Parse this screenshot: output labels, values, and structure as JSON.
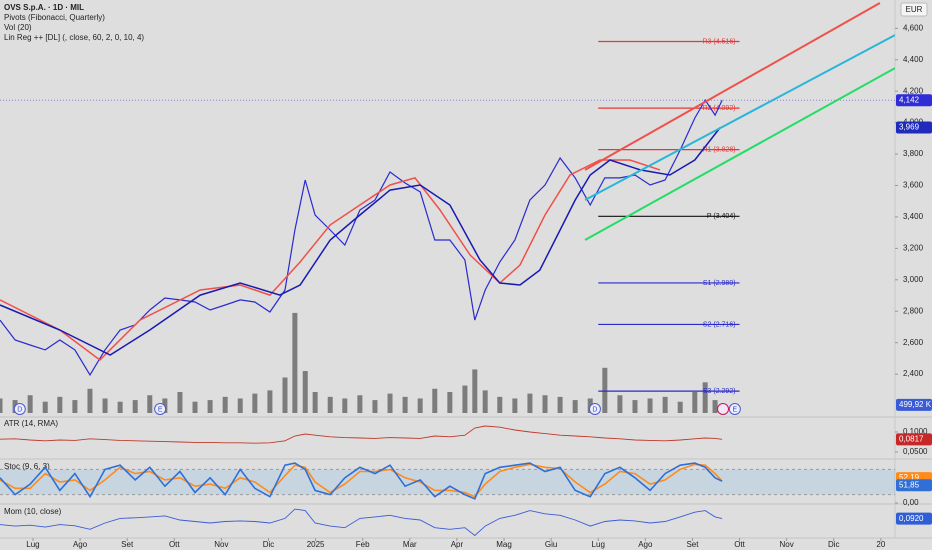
{
  "chart_data": {
    "type": "line",
    "title": "OVS S.p.A. · 1D · MIL",
    "studies": [
      "Pivots (Fibonacci, Quarterly)",
      "Vol (20)",
      "Lin Reg ++ [DL] (, close, 60, 2, 0, 10, 4)"
    ],
    "currency": "EUR",
    "x": [
      -0.7,
      -0.38,
      -0.06,
      0.26,
      0.57,
      0.89,
      1.21,
      1.53,
      1.85,
      2.17,
      2.48,
      2.8,
      3.12,
      3.44,
      3.76,
      4.08,
      4.4,
      4.71,
      5.03,
      5.35,
      5.56,
      5.78,
      5.99,
      6.31,
      6.62,
      6.94,
      7.26,
      7.58,
      7.9,
      8.22,
      8.53,
      8.85,
      9.17,
      9.38,
      9.6,
      9.91,
      10.23,
      10.55,
      10.87,
      11.19,
      11.51,
      11.83,
      12.14,
      12.46,
      12.78,
      13.1,
      13.42,
      13.74,
      14.05,
      14.27,
      14.48,
      14.63
    ],
    "xlim": [
      -0.7,
      18.3
    ],
    "xticks": [
      {
        "value": 0,
        "label": "Lug"
      },
      {
        "value": 1,
        "label": "Ago"
      },
      {
        "value": 2,
        "label": "Set"
      },
      {
        "value": 3,
        "label": "Ott"
      },
      {
        "value": 4,
        "label": "Nov"
      },
      {
        "value": 5,
        "label": "Dic"
      },
      {
        "value": 6,
        "label": "2025"
      },
      {
        "value": 7,
        "label": "Feb"
      },
      {
        "value": 8,
        "label": "Mar"
      },
      {
        "value": 9,
        "label": "Apr"
      },
      {
        "value": 10,
        "label": "Mag"
      },
      {
        "value": 11,
        "label": "Giu"
      },
      {
        "value": 12,
        "label": "Lug"
      },
      {
        "value": 13,
        "label": "Ago"
      },
      {
        "value": 14,
        "label": "Set"
      },
      {
        "value": 15,
        "label": "Ott"
      },
      {
        "value": 16,
        "label": "Nov"
      },
      {
        "value": 17,
        "label": "Dic"
      },
      {
        "value": 18,
        "label": "20"
      }
    ],
    "ylim": [
      2.14,
      4.78
    ],
    "yticks": [
      {
        "value": 4.6,
        "label": "4,600"
      },
      {
        "value": 4.4,
        "label": "4,400"
      },
      {
        "value": 4.2,
        "label": "4,200"
      },
      {
        "value": 4.0,
        "label": "4,000"
      },
      {
        "value": 3.8,
        "label": "3,800"
      },
      {
        "value": 3.6,
        "label": "3,600"
      },
      {
        "value": 3.4,
        "label": "3,400"
      },
      {
        "value": 3.2,
        "label": "3,200"
      },
      {
        "value": 3.0,
        "label": "3,000"
      },
      {
        "value": 2.8,
        "label": "2,800"
      },
      {
        "value": 2.6,
        "label": "2,600"
      },
      {
        "value": 2.4,
        "label": "2,400"
      }
    ],
    "series": [
      {
        "color": "#2a2ad0",
        "width": 1.2,
        "last_label": "4,142",
        "label_color": "#2f2bd6",
        "values": [
          2.744,
          2.617,
          2.585,
          2.554,
          2.617,
          2.554,
          2.395,
          2.554,
          2.681,
          2.713,
          2.808,
          2.884,
          2.872,
          2.859,
          2.808,
          2.84,
          2.872,
          2.859,
          2.795,
          2.935,
          3.317,
          3.635,
          3.412,
          3.317,
          3.221,
          3.444,
          3.508,
          3.686,
          3.616,
          3.559,
          3.253,
          3.253,
          3.126,
          2.744,
          2.935,
          3.113,
          3.253,
          3.508,
          3.603,
          3.775,
          3.648,
          3.476,
          3.648,
          3.648,
          3.667,
          3.603,
          3.635,
          3.826,
          4.029,
          4.144,
          4.048,
          4.142
        ]
      },
      {
        "color": "#f0504a",
        "width": 1.5,
        "x": [
          -0.7,
          0.57,
          1.42,
          2.27,
          3.55,
          4.4,
          5.03,
          5.67,
          6.31,
          6.94,
          7.58,
          8.11,
          8.64,
          9.28,
          9.91,
          10.34,
          10.87,
          11.4,
          12.04,
          12.67,
          13.31
        ],
        "values": [
          2.872,
          2.681,
          2.49,
          2.744,
          2.935,
          2.967,
          2.903,
          3.113,
          3.349,
          3.476,
          3.603,
          3.648,
          3.444,
          3.158,
          2.98,
          3.094,
          3.412,
          3.667,
          3.762,
          3.762,
          3.699
        ]
      },
      {
        "color": "#1a1ab0",
        "width": 1.5,
        "last_label": "3,969",
        "label_color": "#1e2bbd",
        "x": [
          -0.7,
          0.57,
          1.64,
          2.48,
          3.55,
          4.4,
          5.24,
          5.67,
          6.31,
          6.94,
          7.58,
          8.22,
          8.85,
          9.49,
          9.91,
          10.34,
          10.76,
          11.19,
          11.51,
          11.83,
          12.25,
          12.89,
          13.52,
          14.05,
          14.59
        ],
        "values": [
          2.84,
          2.681,
          2.522,
          2.681,
          2.903,
          2.98,
          2.903,
          2.967,
          3.253,
          3.412,
          3.571,
          3.603,
          3.476,
          3.126,
          2.98,
          2.967,
          3.062,
          3.317,
          3.508,
          3.667,
          3.762,
          3.699,
          3.667,
          3.762,
          3.969
        ]
      },
      {
        "color": "#f0504a",
        "width": 2,
        "x": [
          11.72,
          17.98
        ],
        "values": [
          3.699,
          4.761
        ]
      },
      {
        "color": "#29b6d8",
        "width": 2,
        "x": [
          11.72,
          18.3
        ],
        "values": [
          3.508,
          4.557
        ]
      },
      {
        "color": "#22dd66",
        "width": 2,
        "x": [
          11.72,
          18.3
        ],
        "values": [
          3.253,
          4.347
        ]
      }
    ],
    "pivots": [
      {
        "label": "R3 (4.516)",
        "value": 4.516,
        "color": "#e53935",
        "x": [
          12,
          15
        ]
      },
      {
        "label": "R2 (4.092)",
        "value": 4.092,
        "color": "#e53935",
        "x": [
          12,
          15
        ]
      },
      {
        "label": "R1 (3.828)",
        "value": 3.828,
        "color": "#e53935",
        "x": [
          12,
          15
        ]
      },
      {
        "label": "P (3.404)",
        "value": 3.404,
        "color": "#111111",
        "x": [
          12,
          15
        ]
      },
      {
        "label": "S1 (2.980)",
        "value": 2.98,
        "color": "#2b2bc8",
        "x": [
          12,
          15
        ]
      },
      {
        "label": "S2 (2.716)",
        "value": 2.716,
        "color": "#2b2bc8",
        "x": [
          12,
          15
        ]
      },
      {
        "label": "S3 (2.292)",
        "value": 2.292,
        "color": "#2b2bc8",
        "x": [
          12,
          15
        ]
      }
    ],
    "volume": {
      "color": "#5b5b5b",
      "vlim": [
        0,
        7000
      ],
      "values": [
        900,
        800,
        1100,
        700,
        1000,
        800,
        1500,
        900,
        700,
        800,
        1100,
        900,
        1300,
        700,
        800,
        1000,
        900,
        1200,
        1400,
        2200,
        6200,
        2600,
        1300,
        1000,
        900,
        1100,
        800,
        1200,
        1000,
        900,
        1500,
        1300,
        1700,
        2700,
        1400,
        1000,
        900,
        1200,
        1100,
        1000,
        800,
        900,
        2800,
        1100,
        800,
        900,
        1000,
        700,
        1300,
        1900,
        800,
        400
      ],
      "ma": {
        "value": 499.92,
        "label": "499,92 K",
        "color": "#3b5bd6"
      }
    },
    "events": [
      {
        "x": -0.28,
        "label": "D"
      },
      {
        "x": 2.7,
        "label": "E"
      },
      {
        "x": 11.93,
        "label": "D"
      },
      {
        "x": 14.9,
        "label": "E"
      }
    ],
    "panes": [
      {
        "title": "ATR (14, RMA)",
        "ylim": [
          0.035,
          0.135
        ],
        "yticks": [
          {
            "value": 0.1,
            "label": "0,1000"
          },
          {
            "value": 0.05,
            "label": "0,0500"
          }
        ],
        "series": [
          {
            "color": "#c0392b",
            "last_label": "0,0817",
            "label_color": "#c62828",
            "values": [
              0.082,
              0.083,
              0.08,
              0.078,
              0.08,
              0.079,
              0.083,
              0.081,
              0.079,
              0.078,
              0.077,
              0.076,
              0.075,
              0.074,
              0.074,
              0.073,
              0.073,
              0.072,
              0.073,
              0.078,
              0.09,
              0.095,
              0.092,
              0.088,
              0.086,
              0.085,
              0.084,
              0.086,
              0.085,
              0.084,
              0.09,
              0.088,
              0.092,
              0.11,
              0.115,
              0.112,
              0.105,
              0.1,
              0.096,
              0.092,
              0.09,
              0.088,
              0.085,
              0.083,
              0.08,
              0.079,
              0.078,
              0.08,
              0.083,
              0.085,
              0.084,
              0.0817
            ]
          }
        ]
      },
      {
        "title": "Stoc (9, 6, 3)",
        "ylim": [
          0,
          100
        ],
        "band": [
          20,
          80
        ],
        "yticks": [
          {
            "value": 0,
            "label": "0,00"
          }
        ],
        "series": [
          {
            "color": "#ff8c1a",
            "last_label": "52,19",
            "label_color": "#ff8c1a",
            "values": [
              55,
              35,
              35,
              70,
              50,
              55,
              30,
              55,
              85,
              70,
              75,
              55,
              60,
              40,
              45,
              35,
              60,
              50,
              25,
              65,
              90,
              85,
              50,
              25,
              45,
              75,
              75,
              80,
              60,
              50,
              30,
              30,
              25,
              15,
              45,
              75,
              85,
              92,
              85,
              82,
              50,
              25,
              45,
              75,
              70,
              45,
              55,
              80,
              92,
              90,
              70,
              52.19
            ]
          },
          {
            "color": "#2f6fd6",
            "last_label": "51,85",
            "label_color": "#2f6fd6",
            "values": [
              60,
              20,
              45,
              85,
              30,
              70,
              15,
              80,
              90,
              55,
              85,
              40,
              75,
              25,
              60,
              20,
              80,
              35,
              15,
              90,
              95,
              80,
              30,
              20,
              60,
              85,
              70,
              90,
              40,
              55,
              15,
              40,
              20,
              10,
              70,
              85,
              90,
              95,
              75,
              85,
              30,
              15,
              70,
              85,
              60,
              30,
              70,
              90,
              95,
              85,
              60,
              51.85
            ]
          }
        ]
      },
      {
        "title": "Mom (10, close)",
        "ylim": [
          -0.5,
          0.5
        ],
        "yticks": [],
        "series": [
          {
            "color": "#3b5bd6",
            "last_label": "0,0920",
            "label_color": "#2f5fd6",
            "values": [
              -0.1,
              -0.15,
              -0.12,
              -0.18,
              -0.1,
              -0.14,
              -0.25,
              -0.05,
              0.1,
              0.12,
              0.15,
              0.18,
              0.05,
              0.0,
              -0.05,
              0.0,
              0.02,
              0.0,
              -0.05,
              0.1,
              0.4,
              0.35,
              -0.05,
              -0.15,
              -0.2,
              0.1,
              0.15,
              0.2,
              0.1,
              0.05,
              -0.2,
              -0.25,
              -0.2,
              -0.45,
              -0.15,
              0.1,
              0.2,
              0.35,
              0.25,
              0.2,
              0.05,
              -0.15,
              0.0,
              0.05,
              0.02,
              -0.05,
              0.0,
              0.15,
              0.3,
              0.35,
              0.15,
              0.092
            ]
          }
        ]
      }
    ]
  }
}
